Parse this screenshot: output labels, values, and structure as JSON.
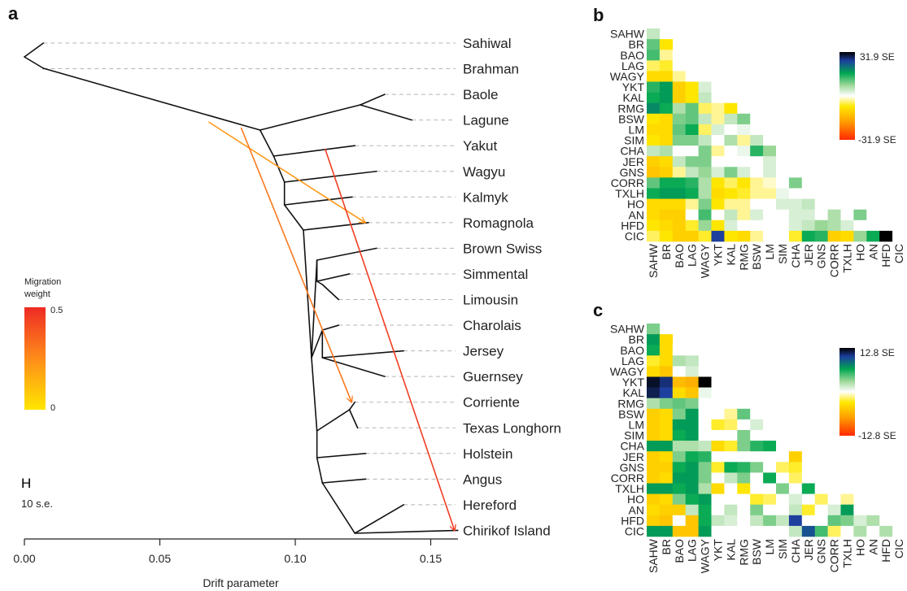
{
  "panel_letters": {
    "a": "a",
    "b": "b",
    "c": "c"
  },
  "chart_data": [
    {
      "panel": "a",
      "type": "tree",
      "xlabel": "Drift parameter",
      "xlim": [
        0,
        0.16
      ],
      "xticks": [
        "0.00",
        "0.05",
        "0.10",
        "0.15"
      ],
      "xtick_values": [
        0,
        0.05,
        0.1,
        0.15
      ],
      "leaves": [
        "Sahiwal",
        "Brahman",
        "Baole",
        "Lagune",
        "Yakut",
        "Wagyu",
        "Kalmyk",
        "Romagnola",
        "Brown Swiss",
        "Simmental",
        "Limousin",
        "Charolais",
        "Jersey",
        "Guernsey",
        "Corriente",
        "Texas Longhorn",
        "Holstein",
        "Angus",
        "Hereford",
        "Chirikof Island"
      ],
      "leaf_drift": [
        0.007,
        0.007,
        0.133,
        0.143,
        0.122,
        0.13,
        0.121,
        0.127,
        0.13,
        0.12,
        0.116,
        0.116,
        0.14,
        0.133,
        0.122,
        0.123,
        0.126,
        0.126,
        0.14,
        0.16
      ],
      "migration_weight_legend": {
        "title": "Migration weight",
        "max_label": "0.5",
        "min_label": "0"
      },
      "scale_bar": {
        "label": "H",
        "text": "10 s.e."
      },
      "migration_edges": [
        {
          "from_drift": 0.068,
          "to": "Romagnola",
          "weight": 0.22
        },
        {
          "from_drift": 0.08,
          "to": "Corriente",
          "weight": 0.3
        },
        {
          "from_drift": 0.111,
          "to": "Chirikof Island",
          "weight": 0.45
        }
      ]
    },
    {
      "panel": "b",
      "type": "heatmap",
      "colorbar": {
        "max_label": "31.9 SE",
        "min_label": "-31.9 SE"
      },
      "row_labels": [
        "SAHW",
        "BR",
        "BAO",
        "LAG",
        "WAGY",
        "YKT",
        "KAL",
        "RMG",
        "BSW",
        "LM",
        "SIM",
        "CHA",
        "JER",
        "GNS",
        "CORR",
        "TXLH",
        "HO",
        "AN",
        "HFD",
        "CIC"
      ],
      "col_labels": [
        "SAHW",
        "BR",
        "BAO",
        "LAG",
        "WAGY",
        "YKT",
        "KAL",
        "RMG",
        "BSW",
        "LM",
        "SIM",
        "CHA",
        "JER",
        "GNS",
        "CORR",
        "TXLH",
        "HO",
        "AN",
        "HFD",
        "CIC"
      ],
      "values": [
        [
          0.15
        ],
        [
          0.35,
          -0.25
        ],
        [
          0.4,
          -0.1,
          0.0
        ],
        [
          -0.15,
          -0.2,
          0.0,
          0.0
        ],
        [
          -0.3,
          -0.3,
          -0.1,
          0.0,
          0.0
        ],
        [
          0.45,
          0.55,
          -0.35,
          -0.25,
          0.1,
          0.0
        ],
        [
          0.5,
          0.55,
          -0.35,
          -0.25,
          0.15,
          0.0,
          0.0
        ],
        [
          0.6,
          0.5,
          0.2,
          0.35,
          -0.15,
          -0.1,
          -0.25,
          0.0
        ],
        [
          -0.25,
          -0.3,
          0.3,
          0.35,
          0.15,
          -0.1,
          0.15,
          0.3,
          0.0
        ],
        [
          -0.3,
          -0.3,
          0.35,
          0.5,
          -0.15,
          0.1,
          0.0,
          0.05,
          0.0,
          0.0
        ],
        [
          -0.25,
          -0.3,
          0.3,
          0.3,
          0.15,
          0.0,
          0.2,
          -0.1,
          0.15,
          0.0,
          0.0
        ],
        [
          0.15,
          0.2,
          0.0,
          0.0,
          0.3,
          -0.1,
          0.0,
          0.05,
          0.45,
          0.25,
          0.0,
          0.0
        ],
        [
          -0.35,
          -0.3,
          0.15,
          0.3,
          0.3,
          0.0,
          0.0,
          0.0,
          0.0,
          0.1,
          0.0,
          0.0,
          0.0
        ],
        [
          -0.4,
          -0.35,
          -0.1,
          0.15,
          0.25,
          0.1,
          0.3,
          0.1,
          0.0,
          0.1,
          0.0,
          0.0,
          0.0,
          0.0
        ],
        [
          0.35,
          0.5,
          0.5,
          0.45,
          0.2,
          -0.25,
          -0.15,
          -0.25,
          -0.1,
          -0.05,
          0.0,
          0.3,
          0.0,
          0.0,
          0.0
        ],
        [
          0.5,
          0.55,
          0.55,
          0.5,
          0.2,
          -0.3,
          -0.25,
          -0.2,
          -0.1,
          -0.1,
          0.05,
          0.0,
          0.0,
          0.0,
          0.0,
          0.0
        ],
        [
          -0.3,
          -0.3,
          -0.3,
          -0.1,
          0.3,
          -0.25,
          -0.1,
          -0.1,
          0.0,
          0.0,
          0.1,
          0.1,
          0.15,
          0.0,
          0.0,
          0.0,
          0.0
        ],
        [
          -0.3,
          -0.35,
          -0.35,
          0.0,
          0.4,
          0.0,
          0.15,
          -0.1,
          0.1,
          0.0,
          0.0,
          0.1,
          0.1,
          0.0,
          0.2,
          0.0,
          0.3,
          0.0
        ],
        [
          -0.25,
          -0.3,
          -0.35,
          -0.2,
          0.25,
          -0.25,
          0.1,
          0.0,
          0.0,
          0.0,
          0.0,
          0.1,
          0.15,
          0.25,
          0.2,
          0.1,
          0.0,
          0.0,
          0.0
        ],
        [
          -0.15,
          -0.25,
          -0.35,
          -0.35,
          -0.2,
          0.8,
          -0.25,
          -0.3,
          -0.1,
          0.0,
          0.0,
          -0.2,
          0.5,
          0.45,
          -0.35,
          -0.3,
          0.25,
          0.5,
          1.0,
          0.0
        ]
      ]
    },
    {
      "panel": "c",
      "type": "heatmap",
      "colorbar": {
        "max_label": "12.8 SE",
        "min_label": "-12.8 SE"
      },
      "row_labels": [
        "SAHW",
        "BR",
        "BAO",
        "LAG",
        "WAGY",
        "YKT",
        "KAL",
        "RMG",
        "BSW",
        "LM",
        "SIM",
        "CHA",
        "JER",
        "GNS",
        "CORR",
        "TXLH",
        "HO",
        "AN",
        "HFD",
        "CIC"
      ],
      "col_labels": [
        "SAHW",
        "BR",
        "BAO",
        "LAG",
        "WAGY",
        "YKT",
        "KAL",
        "RMG",
        "BSW",
        "LM",
        "SIM",
        "CHA",
        "JER",
        "GNS",
        "CORR",
        "TXLH",
        "HO",
        "AN",
        "HFD",
        "CIC"
      ],
      "values": [
        [
          0.3
        ],
        [
          0.55,
          -0.3
        ],
        [
          0.5,
          -0.3,
          0.0
        ],
        [
          -0.2,
          -0.3,
          0.2,
          0.15
        ],
        [
          -0.3,
          -0.4,
          0.0,
          0.1,
          0.0
        ],
        [
          0.95,
          0.85,
          -0.45,
          -0.5,
          1.0,
          0.0
        ],
        [
          0.9,
          0.8,
          -0.3,
          -0.4,
          0.05,
          0.0,
          0.0
        ],
        [
          0.2,
          0.3,
          0.35,
          0.3,
          0.0,
          0.0,
          0.0,
          0.0
        ],
        [
          -0.35,
          -0.3,
          0.3,
          0.55,
          0.0,
          0.0,
          -0.1,
          0.35,
          0.0
        ],
        [
          -0.35,
          -0.3,
          0.55,
          0.55,
          0.0,
          -0.2,
          -0.15,
          0.0,
          0.1,
          0.0
        ],
        [
          -0.35,
          -0.3,
          0.5,
          0.55,
          0.0,
          0.0,
          0.0,
          0.3,
          0.0,
          0.0,
          0.0
        ],
        [
          0.55,
          0.55,
          0.2,
          0.2,
          0.15,
          -0.3,
          -0.2,
          0.3,
          0.45,
          0.5,
          0.0,
          0.0
        ],
        [
          -0.35,
          -0.3,
          0.3,
          0.5,
          0.45,
          0.0,
          0.0,
          0.0,
          0.0,
          0.0,
          0.0,
          -0.35,
          0.0
        ],
        [
          -0.35,
          -0.35,
          0.5,
          0.55,
          0.3,
          -0.2,
          0.5,
          0.45,
          0.3,
          0.0,
          -0.15,
          -0.2,
          0.0,
          0.0
        ],
        [
          -0.35,
          -0.3,
          0.55,
          0.55,
          0.3,
          0.0,
          0.15,
          0.3,
          0.0,
          0.5,
          0.0,
          -0.15,
          0.0,
          0.0,
          0.0
        ],
        [
          0.55,
          0.55,
          0.5,
          0.55,
          0.2,
          -0.3,
          0.0,
          -0.25,
          0.0,
          0.0,
          0.3,
          0.0,
          0.5,
          0.0,
          0.0,
          0.0
        ],
        [
          -0.35,
          -0.3,
          0.3,
          0.5,
          0.55,
          0.0,
          0.0,
          0.0,
          -0.2,
          -0.15,
          0.0,
          0.1,
          0.0,
          -0.15,
          0.0,
          -0.1,
          0.0
        ],
        [
          -0.3,
          -0.35,
          -0.35,
          0.15,
          0.5,
          0.0,
          0.15,
          0.0,
          0.3,
          0.0,
          0.0,
          0.15,
          -0.2,
          0.0,
          0.1,
          0.55,
          0.0,
          0.0
        ],
        [
          -0.35,
          -0.4,
          0.0,
          -0.4,
          0.5,
          0.15,
          0.1,
          0.0,
          0.15,
          0.3,
          0.15,
          0.8,
          0.0,
          0.0,
          0.35,
          0.3,
          0.1,
          0.2,
          0.0
        ],
        [
          0.55,
          0.55,
          -0.4,
          -0.4,
          0.55,
          0.0,
          0.0,
          0.0,
          0.0,
          0.0,
          0.0,
          0.15,
          0.75,
          0.4,
          -0.15,
          0.0,
          0.2,
          0.0,
          0.2,
          0.0
        ]
      ]
    }
  ]
}
